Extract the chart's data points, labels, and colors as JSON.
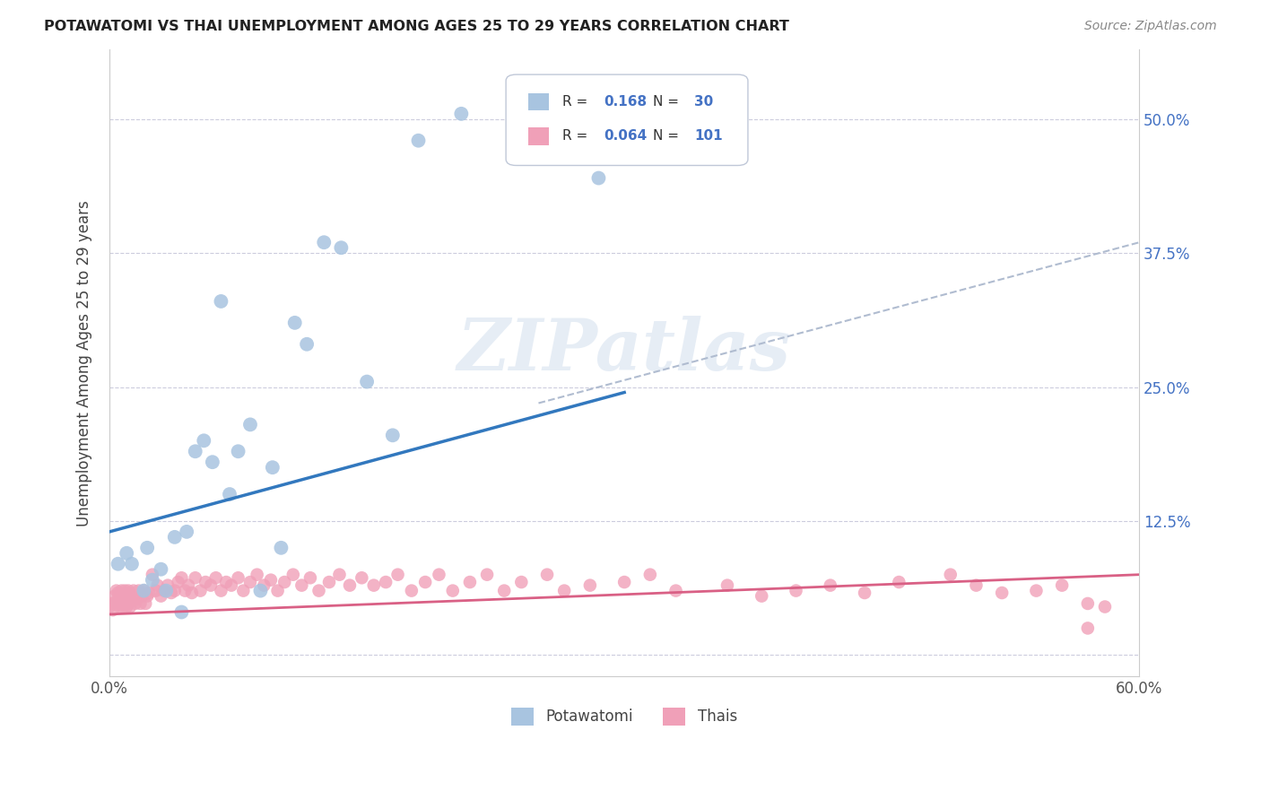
{
  "title": "POTAWATOMI VS THAI UNEMPLOYMENT AMONG AGES 25 TO 29 YEARS CORRELATION CHART",
  "source": "Source: ZipAtlas.com",
  "ylabel": "Unemployment Among Ages 25 to 29 years",
  "xlim": [
    0.0,
    0.6
  ],
  "ylim": [
    -0.02,
    0.565
  ],
  "xticks": [
    0.0,
    0.1,
    0.2,
    0.3,
    0.4,
    0.5,
    0.6
  ],
  "xticklabels": [
    "0.0%",
    "",
    "",
    "",
    "",
    "",
    "60.0%"
  ],
  "yticks": [
    0.0,
    0.125,
    0.25,
    0.375,
    0.5
  ],
  "yticklabels": [
    "",
    "12.5%",
    "25.0%",
    "37.5%",
    "50.0%"
  ],
  "potawatomi_color": "#a8c4e0",
  "potawatomi_line_color": "#3278be",
  "thai_color": "#f0a0b8",
  "thai_line_color": "#d96085",
  "dashed_line_color": "#b0bcd0",
  "watermark_text": "ZIPatlas",
  "legend_R1": "0.168",
  "legend_N1": "30",
  "legend_R2": "0.064",
  "legend_N2": "101",
  "blue_line_x0": 0.0,
  "blue_line_y0": 0.115,
  "blue_line_x1": 0.3,
  "blue_line_y1": 0.245,
  "pink_line_x0": 0.0,
  "pink_line_y0": 0.038,
  "pink_line_x1": 0.6,
  "pink_line_y1": 0.075,
  "dash_line_x0": 0.25,
  "dash_line_y0": 0.235,
  "dash_line_x1": 0.6,
  "dash_line_y1": 0.385,
  "potawatomi_x": [
    0.005,
    0.01,
    0.013,
    0.02,
    0.022,
    0.025,
    0.03,
    0.033,
    0.038,
    0.042,
    0.045,
    0.05,
    0.055,
    0.06,
    0.065,
    0.07,
    0.075,
    0.082,
    0.088,
    0.095,
    0.1,
    0.108,
    0.115,
    0.125,
    0.135,
    0.15,
    0.165,
    0.18,
    0.205,
    0.285
  ],
  "potawatomi_y": [
    0.085,
    0.095,
    0.085,
    0.06,
    0.1,
    0.07,
    0.08,
    0.06,
    0.11,
    0.04,
    0.115,
    0.19,
    0.2,
    0.18,
    0.33,
    0.15,
    0.19,
    0.215,
    0.06,
    0.175,
    0.1,
    0.31,
    0.29,
    0.385,
    0.38,
    0.255,
    0.205,
    0.48,
    0.505,
    0.445
  ],
  "thai_x": [
    0.0,
    0.001,
    0.002,
    0.003,
    0.004,
    0.004,
    0.005,
    0.005,
    0.006,
    0.006,
    0.007,
    0.007,
    0.008,
    0.008,
    0.009,
    0.009,
    0.01,
    0.01,
    0.011,
    0.011,
    0.012,
    0.012,
    0.013,
    0.014,
    0.015,
    0.016,
    0.017,
    0.018,
    0.019,
    0.02,
    0.021,
    0.022,
    0.023,
    0.025,
    0.027,
    0.028,
    0.03,
    0.032,
    0.034,
    0.036,
    0.038,
    0.04,
    0.042,
    0.044,
    0.046,
    0.048,
    0.05,
    0.053,
    0.056,
    0.059,
    0.062,
    0.065,
    0.068,
    0.071,
    0.075,
    0.078,
    0.082,
    0.086,
    0.09,
    0.094,
    0.098,
    0.102,
    0.107,
    0.112,
    0.117,
    0.122,
    0.128,
    0.134,
    0.14,
    0.147,
    0.154,
    0.161,
    0.168,
    0.176,
    0.184,
    0.192,
    0.2,
    0.21,
    0.22,
    0.23,
    0.24,
    0.255,
    0.265,
    0.28,
    0.3,
    0.315,
    0.33,
    0.36,
    0.38,
    0.4,
    0.42,
    0.44,
    0.46,
    0.49,
    0.505,
    0.52,
    0.54,
    0.555,
    0.57,
    0.57,
    0.58
  ],
  "thai_y": [
    0.045,
    0.048,
    0.042,
    0.055,
    0.05,
    0.06,
    0.048,
    0.058,
    0.045,
    0.055,
    0.048,
    0.06,
    0.045,
    0.055,
    0.048,
    0.06,
    0.045,
    0.055,
    0.048,
    0.06,
    0.045,
    0.058,
    0.05,
    0.06,
    0.048,
    0.052,
    0.06,
    0.048,
    0.055,
    0.06,
    0.048,
    0.055,
    0.058,
    0.075,
    0.06,
    0.065,
    0.055,
    0.06,
    0.065,
    0.058,
    0.06,
    0.068,
    0.072,
    0.06,
    0.065,
    0.058,
    0.072,
    0.06,
    0.068,
    0.065,
    0.072,
    0.06,
    0.068,
    0.065,
    0.072,
    0.06,
    0.068,
    0.075,
    0.065,
    0.07,
    0.06,
    0.068,
    0.075,
    0.065,
    0.072,
    0.06,
    0.068,
    0.075,
    0.065,
    0.072,
    0.065,
    0.068,
    0.075,
    0.06,
    0.068,
    0.075,
    0.06,
    0.068,
    0.075,
    0.06,
    0.068,
    0.075,
    0.06,
    0.065,
    0.068,
    0.075,
    0.06,
    0.065,
    0.055,
    0.06,
    0.065,
    0.058,
    0.068,
    0.075,
    0.065,
    0.058,
    0.06,
    0.065,
    0.025,
    0.048,
    0.045
  ]
}
